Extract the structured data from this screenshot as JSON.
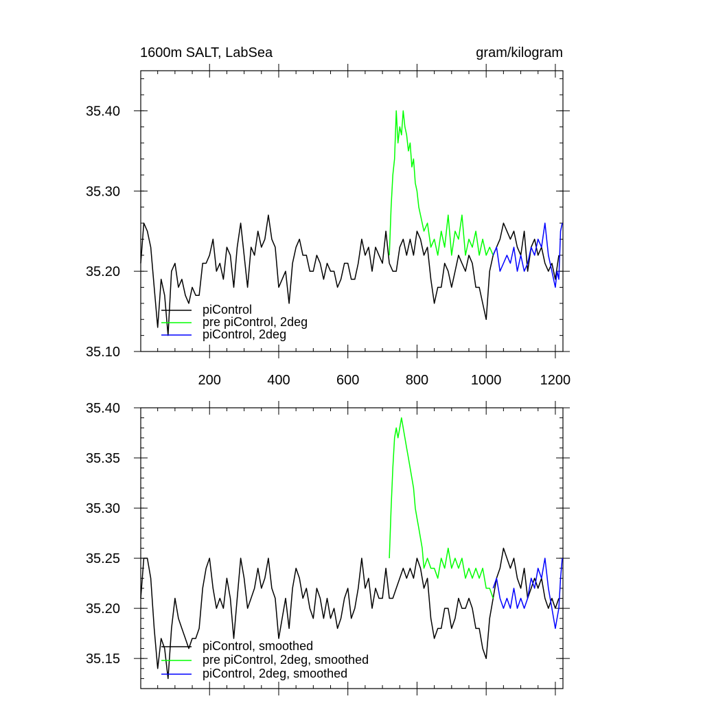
{
  "chart_data": [
    {
      "type": "line",
      "title": "1600m SALT, LabSea",
      "units": "gram/kilogram",
      "xlim": [
        1,
        1222
      ],
      "ylim": [
        35.1,
        35.45
      ],
      "x_major_ticks": [
        200,
        400,
        600,
        800,
        1000,
        1200
      ],
      "y_major_ticks": [
        35.1,
        35.2,
        35.3,
        35.4
      ],
      "x_tick_labels": [
        "200",
        "400",
        "600",
        "800",
        "1000",
        "1200"
      ],
      "y_tick_labels": [
        "35.10",
        "35.20",
        "35.30",
        "35.40"
      ],
      "grid": false,
      "legend_position": "bottom-left",
      "series": [
        {
          "name": "piControl",
          "color": "#000000",
          "x": [
            1,
            10,
            20,
            30,
            40,
            50,
            60,
            70,
            80,
            90,
            100,
            110,
            120,
            130,
            140,
            150,
            160,
            170,
            180,
            190,
            200,
            210,
            220,
            230,
            240,
            250,
            260,
            270,
            280,
            290,
            300,
            310,
            320,
            330,
            340,
            350,
            360,
            370,
            380,
            390,
            400,
            410,
            420,
            430,
            440,
            450,
            460,
            470,
            480,
            490,
            500,
            510,
            520,
            530,
            540,
            550,
            560,
            570,
            580,
            590,
            600,
            610,
            620,
            630,
            640,
            650,
            660,
            670,
            680,
            690,
            700,
            710,
            720,
            730,
            740,
            750,
            760,
            770,
            780,
            790,
            800,
            810,
            820,
            830,
            840,
            850,
            860,
            870,
            880,
            890,
            900,
            910,
            920,
            930,
            940,
            950,
            960,
            970,
            980,
            990,
            1000,
            1010,
            1020,
            1030,
            1040,
            1050,
            1060,
            1070,
            1080,
            1090,
            1100,
            1110,
            1120,
            1130,
            1140,
            1150,
            1160,
            1170,
            1180,
            1190,
            1200,
            1210
          ],
          "y": [
            35.21,
            35.26,
            35.25,
            35.23,
            35.18,
            35.13,
            35.19,
            35.17,
            35.12,
            35.2,
            35.21,
            35.18,
            35.19,
            35.17,
            35.16,
            35.18,
            35.17,
            35.17,
            35.21,
            35.21,
            35.22,
            35.24,
            35.2,
            35.21,
            35.19,
            35.23,
            35.22,
            35.18,
            35.23,
            35.26,
            35.22,
            35.18,
            35.23,
            35.22,
            35.25,
            35.23,
            35.24,
            35.27,
            35.24,
            35.23,
            35.18,
            35.19,
            35.2,
            35.16,
            35.21,
            35.23,
            35.24,
            35.22,
            35.22,
            35.2,
            35.2,
            35.22,
            35.21,
            35.19,
            35.21,
            35.2,
            35.2,
            35.18,
            35.19,
            35.21,
            35.21,
            35.19,
            35.19,
            35.21,
            35.24,
            35.22,
            35.23,
            35.2,
            35.23,
            35.22,
            35.21,
            35.25,
            35.21,
            35.2,
            35.2,
            35.23,
            35.24,
            35.22,
            35.24,
            35.22,
            35.25,
            35.24,
            35.22,
            35.23,
            35.19,
            35.16,
            35.18,
            35.18,
            35.21,
            35.2,
            35.18,
            35.2,
            35.22,
            35.21,
            35.2,
            35.22,
            35.21,
            35.18,
            35.18,
            35.16,
            35.14,
            35.2,
            35.22,
            35.23,
            35.24,
            35.26,
            35.25,
            35.24,
            35.25,
            35.23,
            35.22,
            35.25,
            35.2,
            35.23,
            35.24,
            35.22,
            35.23,
            35.21,
            35.2,
            35.21,
            35.19,
            35.22
          ]
        },
        {
          "name": "pre piControl, 2deg",
          "color": "#00ff00",
          "x": [
            720,
            725,
            730,
            735,
            740,
            745,
            750,
            755,
            760,
            765,
            770,
            775,
            780,
            785,
            790,
            795,
            800,
            805,
            810,
            815,
            820,
            830,
            840,
            850,
            860,
            870,
            880,
            890,
            900,
            910,
            920,
            930,
            940,
            950,
            960,
            970,
            980,
            990,
            1000,
            1010,
            1020
          ],
          "y": [
            35.22,
            35.28,
            35.32,
            35.34,
            35.4,
            35.36,
            35.38,
            35.37,
            35.4,
            35.38,
            35.37,
            35.35,
            35.36,
            35.33,
            35.34,
            35.31,
            35.3,
            35.28,
            35.27,
            35.26,
            35.25,
            35.26,
            35.23,
            35.24,
            35.22,
            35.25,
            35.23,
            35.27,
            35.22,
            35.25,
            35.24,
            35.27,
            35.22,
            35.24,
            35.23,
            35.25,
            35.22,
            35.24,
            35.22,
            35.23,
            35.22
          ]
        },
        {
          "name": "piControl, 2deg",
          "color": "#0000ff",
          "x": [
            1020,
            1030,
            1040,
            1050,
            1060,
            1070,
            1080,
            1090,
            1100,
            1110,
            1120,
            1130,
            1140,
            1150,
            1160,
            1170,
            1180,
            1190,
            1200,
            1205,
            1210,
            1215,
            1220
          ],
          "y": [
            35.22,
            35.23,
            35.2,
            35.21,
            35.22,
            35.21,
            35.23,
            35.2,
            35.22,
            35.2,
            35.21,
            35.23,
            35.22,
            35.24,
            35.23,
            35.26,
            35.22,
            35.2,
            35.18,
            35.2,
            35.19,
            35.25,
            35.26
          ]
        }
      ]
    },
    {
      "type": "line",
      "title": "",
      "xlim": [
        1,
        1222
      ],
      "ylim": [
        35.12,
        35.4
      ],
      "y_major_ticks": [
        35.15,
        35.2,
        35.25,
        35.3,
        35.35,
        35.4
      ],
      "y_tick_labels": [
        "35.15",
        "35.20",
        "35.25",
        "35.30",
        "35.35",
        "35.40"
      ],
      "grid": false,
      "legend_position": "bottom-left",
      "series": [
        {
          "name": "piControl, smoothed",
          "color": "#000000",
          "x": [
            1,
            10,
            20,
            30,
            40,
            50,
            60,
            70,
            80,
            90,
            100,
            110,
            120,
            130,
            140,
            150,
            160,
            170,
            180,
            190,
            200,
            210,
            220,
            230,
            240,
            250,
            260,
            270,
            280,
            290,
            300,
            310,
            320,
            330,
            340,
            350,
            360,
            370,
            380,
            390,
            400,
            410,
            420,
            430,
            440,
            450,
            460,
            470,
            480,
            490,
            500,
            510,
            520,
            530,
            540,
            550,
            560,
            570,
            580,
            590,
            600,
            610,
            620,
            630,
            640,
            650,
            660,
            670,
            680,
            690,
            700,
            710,
            720,
            730,
            740,
            750,
            760,
            770,
            780,
            790,
            800,
            810,
            820,
            830,
            840,
            850,
            860,
            870,
            880,
            890,
            900,
            910,
            920,
            930,
            940,
            950,
            960,
            970,
            980,
            990,
            1000,
            1010,
            1020,
            1030,
            1040,
            1050,
            1060,
            1070,
            1080,
            1090,
            1100,
            1110,
            1120,
            1130,
            1140,
            1150,
            1160,
            1170,
            1180,
            1190,
            1200,
            1210
          ],
          "y": [
            35.21,
            35.25,
            35.25,
            35.23,
            35.18,
            35.14,
            35.17,
            35.16,
            35.13,
            35.18,
            35.21,
            35.19,
            35.18,
            35.17,
            35.16,
            35.17,
            35.17,
            35.18,
            35.22,
            35.24,
            35.25,
            35.22,
            35.2,
            35.21,
            35.2,
            35.23,
            35.21,
            35.17,
            35.21,
            35.25,
            35.23,
            35.2,
            35.21,
            35.22,
            35.24,
            35.22,
            35.23,
            35.25,
            35.22,
            35.21,
            35.17,
            35.19,
            35.21,
            35.18,
            35.22,
            35.24,
            35.23,
            35.21,
            35.22,
            35.2,
            35.19,
            35.22,
            35.21,
            35.19,
            35.21,
            35.19,
            35.2,
            35.18,
            35.19,
            35.21,
            35.22,
            35.19,
            35.2,
            35.22,
            35.25,
            35.22,
            35.23,
            35.2,
            35.22,
            35.21,
            35.21,
            35.24,
            35.21,
            35.21,
            35.22,
            35.23,
            35.24,
            35.23,
            35.24,
            35.23,
            35.25,
            35.24,
            35.22,
            35.23,
            35.19,
            35.17,
            35.18,
            35.18,
            35.2,
            35.2,
            35.18,
            35.19,
            35.21,
            35.2,
            35.2,
            35.21,
            35.2,
            35.18,
            35.18,
            35.16,
            35.15,
            35.19,
            35.21,
            35.23,
            35.24,
            35.26,
            35.25,
            35.24,
            35.25,
            35.23,
            35.22,
            35.24,
            35.21,
            35.22,
            35.23,
            35.22,
            35.23,
            35.21,
            35.2,
            35.21,
            35.2,
            35.21
          ]
        },
        {
          "name": "pre piControl, 2deg, smoothed",
          "color": "#00ff00",
          "x": [
            720,
            725,
            730,
            735,
            740,
            745,
            750,
            755,
            760,
            765,
            770,
            775,
            780,
            785,
            790,
            795,
            800,
            805,
            810,
            815,
            820,
            830,
            840,
            850,
            860,
            870,
            880,
            890,
            900,
            910,
            920,
            930,
            940,
            950,
            960,
            970,
            980,
            990,
            1000,
            1010,
            1020
          ],
          "y": [
            35.25,
            35.3,
            35.34,
            35.37,
            35.38,
            35.37,
            35.38,
            35.39,
            35.38,
            35.37,
            35.36,
            35.35,
            35.34,
            35.33,
            35.32,
            35.3,
            35.29,
            35.28,
            35.27,
            35.26,
            35.24,
            35.25,
            35.24,
            35.24,
            35.23,
            35.25,
            35.24,
            35.26,
            35.24,
            35.25,
            35.24,
            35.25,
            35.23,
            35.24,
            35.23,
            35.24,
            35.23,
            35.24,
            35.22,
            35.22,
            35.21
          ]
        },
        {
          "name": "piControl, 2deg, smoothed",
          "color": "#0000ff",
          "x": [
            1020,
            1030,
            1040,
            1050,
            1060,
            1070,
            1080,
            1090,
            1100,
            1110,
            1120,
            1130,
            1140,
            1150,
            1160,
            1170,
            1180,
            1190,
            1200,
            1205,
            1210,
            1215,
            1220
          ],
          "y": [
            35.22,
            35.23,
            35.21,
            35.2,
            35.21,
            35.2,
            35.22,
            35.2,
            35.21,
            35.2,
            35.21,
            35.23,
            35.22,
            35.24,
            35.23,
            35.25,
            35.22,
            35.2,
            35.18,
            35.19,
            35.2,
            35.23,
            35.25
          ]
        }
      ]
    }
  ]
}
